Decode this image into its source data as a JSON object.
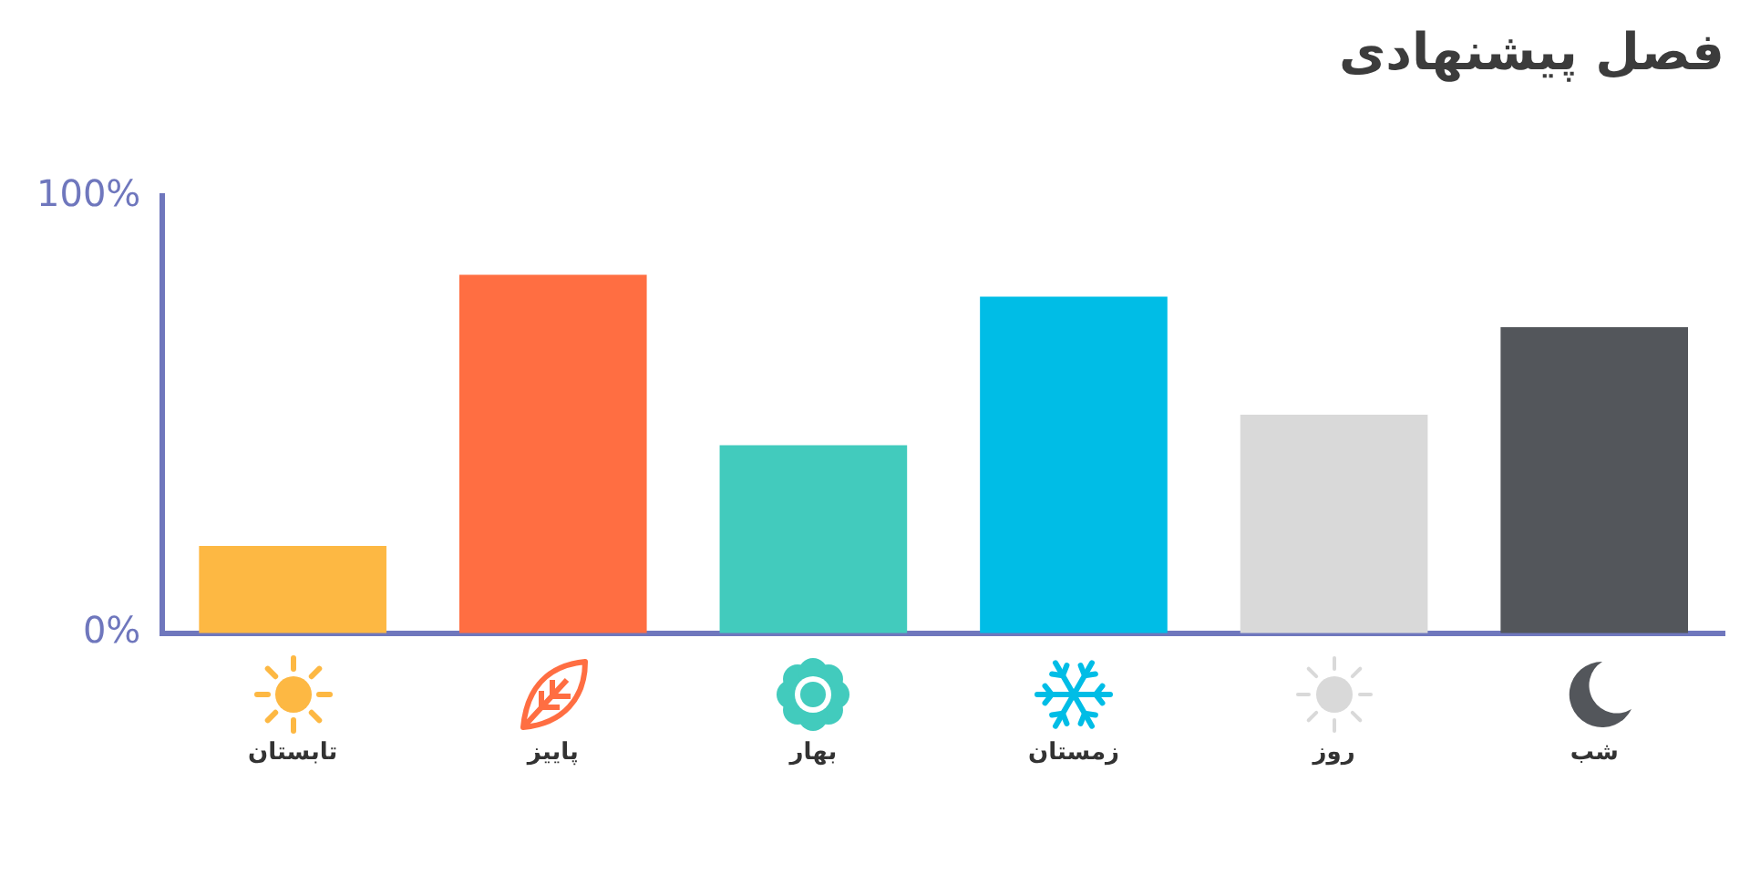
{
  "chart_data": {
    "type": "bar",
    "title": "فصل پیشنهادی",
    "categories": [
      "تابستان",
      "پاییز",
      "بهار",
      "زمستان",
      "روز",
      "شب"
    ],
    "values": [
      20,
      82,
      43,
      77,
      50,
      70
    ],
    "colors": [
      "#fdb843",
      "#ff6e42",
      "#42cbbd",
      "#00bde6",
      "#d9d9d9",
      "#53565b"
    ],
    "ylim": [
      0,
      100
    ],
    "yticks": [
      {
        "value": 0,
        "label": "0%"
      },
      {
        "value": 100,
        "label": "100%"
      }
    ],
    "grid": false,
    "legend": false
  }
}
